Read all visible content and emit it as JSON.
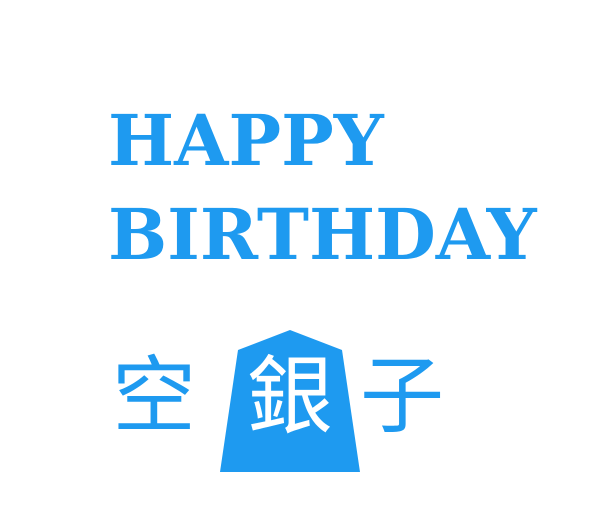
{
  "greeting": {
    "line1": "HAPPY",
    "line2": "BIRTHDAY"
  },
  "name": {
    "left_char": "空",
    "center_char": "銀",
    "right_char": "子"
  },
  "colors": {
    "accent": "#1e9af0",
    "piece_fill": "#1e9af0",
    "piece_text": "#ffffff",
    "background": "#ffffff"
  }
}
